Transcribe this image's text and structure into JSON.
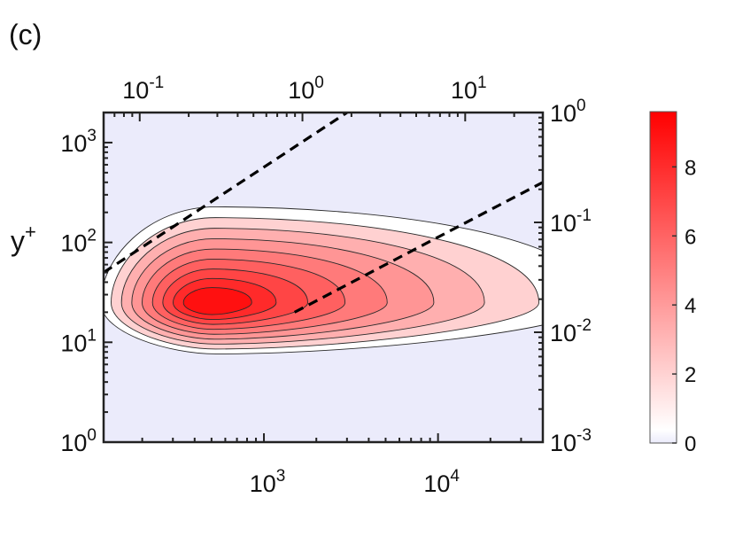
{
  "panel_label": "(c)",
  "chart_data": {
    "type": "heatmap",
    "subtype": "filled-contour",
    "x": {
      "bottom_scale": "log",
      "bottom_range": [
        120,
        40000
      ],
      "bottom_ticks": [
        {
          "base": "10",
          "exp": "3",
          "value": 1000
        },
        {
          "base": "10",
          "exp": "4",
          "value": 10000
        }
      ],
      "top_scale": "log",
      "top_range": [
        0.06,
        30
      ],
      "top_ticks": [
        {
          "base": "10",
          "exp": "-1",
          "value": 0.1
        },
        {
          "base": "10",
          "exp": "0",
          "value": 1
        },
        {
          "base": "10",
          "exp": "1",
          "value": 10
        }
      ]
    },
    "y": {
      "left_label_base": "y",
      "left_label_sup": "+",
      "left_scale": "log",
      "left_range": [
        1,
        2000
      ],
      "left_ticks": [
        {
          "base": "10",
          "exp": "0",
          "value": 1
        },
        {
          "base": "10",
          "exp": "1",
          "value": 10
        },
        {
          "base": "10",
          "exp": "2",
          "value": 100
        },
        {
          "base": "10",
          "exp": "3",
          "value": 1000
        }
      ],
      "right_scale": "log",
      "right_range": [
        0.001,
        1
      ],
      "right_ticks": [
        {
          "base": "10",
          "exp": "-3",
          "value": 0.001
        },
        {
          "base": "10",
          "exp": "-2",
          "value": 0.01
        },
        {
          "base": "10",
          "exp": "-1",
          "value": 0.1
        },
        {
          "base": "10",
          "exp": "0",
          "value": 1
        }
      ]
    },
    "peak": {
      "x": 500,
      "y": 25,
      "value": 9.5
    },
    "contour_levels": [
      0.5,
      2,
      3,
      4,
      5,
      6,
      7,
      8,
      9
    ],
    "dashed_lines": [
      {
        "points": [
          [
            120,
            50
          ],
          [
            3000,
            2000
          ]
        ]
      },
      {
        "points": [
          [
            1500,
            20
          ],
          [
            40000,
            400
          ]
        ]
      }
    ],
    "colorbar": {
      "range": [
        0,
        9.6
      ],
      "ticks": [
        "0",
        "2",
        "4",
        "6",
        "8"
      ],
      "tick_values": [
        0,
        2,
        4,
        6,
        8
      ],
      "colors": {
        "low": "#ebebfb",
        "zero": "#ffffff",
        "high": "#ff0000"
      }
    },
    "grid": false,
    "legend": "none"
  }
}
